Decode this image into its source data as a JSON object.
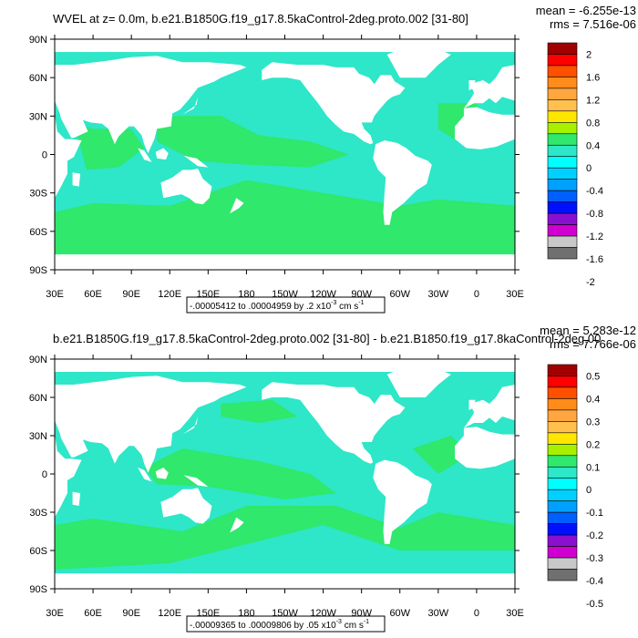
{
  "ocean_color_light": "#2ee6c8",
  "ocean_color_green": "#2fe86c",
  "land_color": "#ffffff",
  "y_tick_labels": [
    "90N",
    "60N",
    "30N",
    "0",
    "30S",
    "60S",
    "90S"
  ],
  "x_tick_labels": [
    "30E",
    "60E",
    "90E",
    "120E",
    "150E",
    "180",
    "150W",
    "120W",
    "90W",
    "60W",
    "30W",
    "0",
    "30E"
  ],
  "panels": [
    {
      "title": "WVEL at z=    0.0m, b.e21.B1850G.f19_g17.8.5kaControl-2deg.proto.002 [31-80]",
      "mean_text": "mean = -6.255e-13",
      "rms_text": "rms = 7.516e-06",
      "contour_info": "-.00005412 to .00004959 by .2 x10",
      "contour_exp": "-3",
      "contour_unit": " cm s",
      "contour_unit_exp": "-1",
      "colorbar_labels": [
        "2",
        "1.6",
        "1.2",
        "0.8",
        "0.4",
        "0",
        "-0.4",
        "-0.8",
        "-1.2",
        "-1.6",
        "-2"
      ]
    },
    {
      "title": "b.e21.B1850G.f19_g17.8.5kaControl-2deg.proto.002 [31-80] - b.e21.B1850.f19_g17.8kaControl-2deg.00",
      "mean_text": "mean = 5.283e-12",
      "rms_text": "rms = 7.766e-06",
      "contour_info": "-.00009365 to .00009806 by .05 x10",
      "contour_exp": "-3",
      "contour_unit": " cm s",
      "contour_unit_exp": "-1",
      "colorbar_labels": [
        "0.5",
        "0.4",
        "0.3",
        "0.2",
        "0.1",
        "0",
        "-0.1",
        "-0.2",
        "-0.3",
        "-0.4",
        "-0.5"
      ]
    }
  ],
  "colorbar_colors": [
    "#a00000",
    "#ff0000",
    "#ff5000",
    "#ff8c1a",
    "#ffa640",
    "#ffc04d",
    "#ffe600",
    "#a6f000",
    "#2fe86c",
    "#2ee6c8",
    "#00ffff",
    "#00d0ff",
    "#00a0ff",
    "#0060ff",
    "#0010ff",
    "#8a10d0",
    "#d000d0",
    "#c8c8c8",
    "#707070"
  ]
}
